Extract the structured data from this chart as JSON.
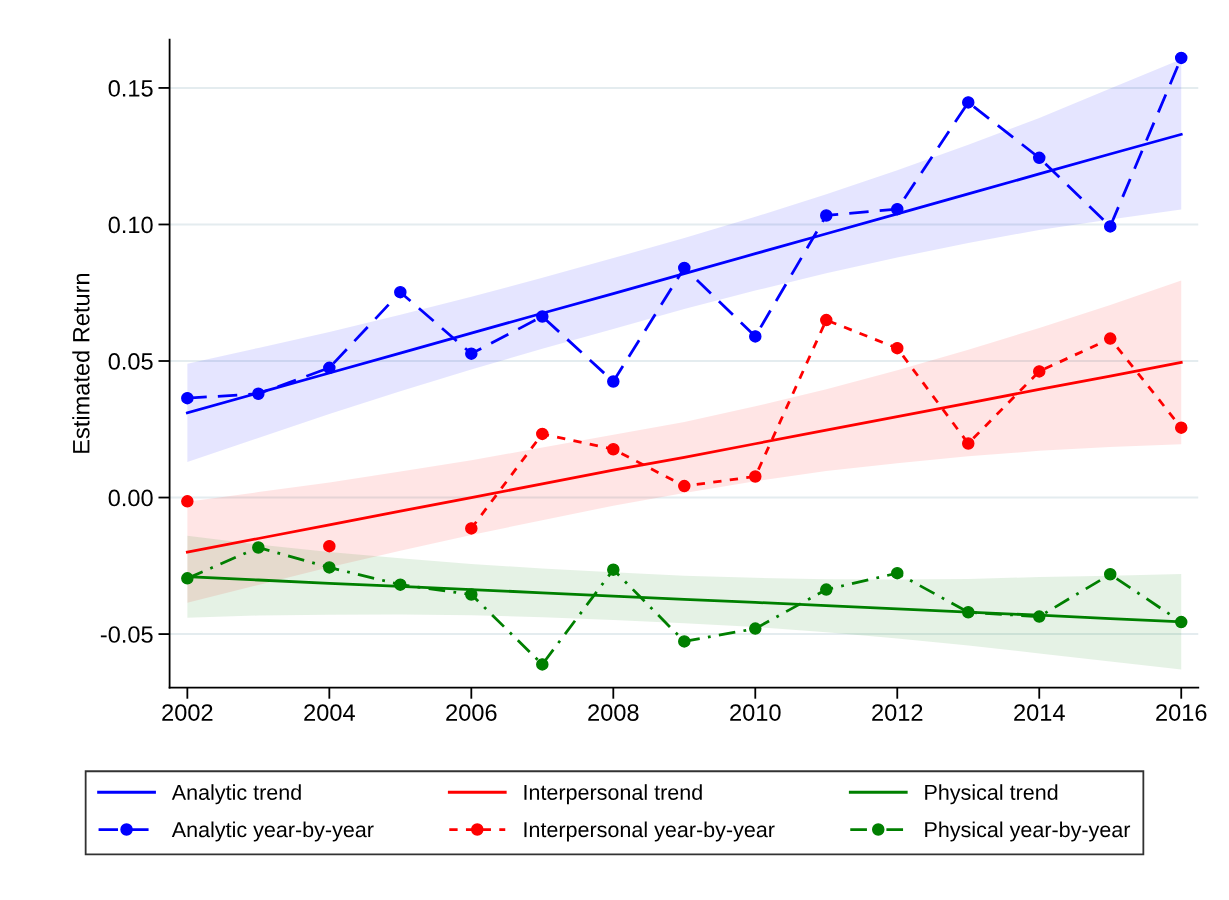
{
  "chart_data": {
    "type": "line",
    "ylabel": "Estimated Return",
    "x": [
      2002,
      2003,
      2004,
      2005,
      2006,
      2007,
      2008,
      2009,
      2010,
      2011,
      2012,
      2013,
      2014,
      2015,
      2016
    ],
    "xlim": [
      2001.75,
      2016.24
    ],
    "xticks": [
      2002,
      2004,
      2006,
      2008,
      2010,
      2012,
      2014,
      2016
    ],
    "ylim": [
      -0.0696,
      0.1677
    ],
    "yticks": [
      -0.05,
      {
        "value": 0.0,
        "label": "0.00"
      },
      0.05,
      {
        "value": 0.1,
        "label": "0.10"
      },
      0.15
    ],
    "grid": "y",
    "legend": "bottom",
    "series": [
      {
        "name": "Analytic trend",
        "color": "#0000ff",
        "line_style": "solid",
        "marker": "none",
        "values": [
          0.031,
          0.0383,
          0.0456,
          0.0529,
          0.0602,
          0.0675,
          0.0747,
          0.082,
          0.0893,
          0.0966,
          0.1039,
          0.1112,
          0.1185,
          0.1258,
          0.133
        ],
        "lower": [
          0.013,
          0.0218,
          0.0306,
          0.0389,
          0.0469,
          0.0545,
          0.0617,
          0.069,
          0.0758,
          0.0821,
          0.0879,
          0.0932,
          0.098,
          0.1018,
          0.1055
        ],
        "upper": [
          0.049,
          0.0548,
          0.0606,
          0.0669,
          0.0735,
          0.0805,
          0.0877,
          0.095,
          0.1028,
          0.1111,
          0.1199,
          0.1292,
          0.139,
          0.1498,
          0.1605
        ]
      },
      {
        "name": "Analytic year-by-year",
        "color": "#0000fe",
        "line_style": "dashed",
        "marker": "circle",
        "values": [
          0.0364,
          0.038,
          0.0475,
          0.0752,
          0.0527,
          0.0663,
          0.0425,
          0.0841,
          0.059,
          0.1033,
          0.1056,
          0.1447,
          0.1244,
          0.0993,
          0.161
        ]
      },
      {
        "name": "Interpersonal trend",
        "color": "#ff0000",
        "line_style": "solid",
        "marker": "none",
        "values": [
          -0.02,
          -0.015,
          -0.01,
          -0.005,
          0.0,
          0.005,
          0.01,
          0.0147,
          0.0197,
          0.0247,
          0.0296,
          0.0346,
          0.0396,
          0.0445,
          0.0495
        ],
        "lower": [
          -0.0385,
          -0.032,
          -0.0255,
          -0.0195,
          -0.0137,
          -0.0083,
          -0.003,
          0.0017,
          0.006,
          0.0097,
          0.0126,
          0.0151,
          0.0171,
          0.0185,
          0.0195
        ],
        "upper": [
          -0.0015,
          0.002,
          0.0055,
          0.0095,
          0.0137,
          0.0183,
          0.023,
          0.0277,
          0.0334,
          0.0397,
          0.0466,
          0.0541,
          0.0621,
          0.0705,
          0.0795
        ]
      },
      {
        "name": "Interpersonal year-by-year",
        "color": "#fe0000",
        "line_style": "dotted",
        "marker": "circle",
        "values": [
          -0.0014,
          null,
          -0.0178,
          null,
          -0.0113,
          0.0233,
          0.0177,
          0.0042,
          0.0077,
          0.065,
          0.0547,
          0.0198,
          0.0462,
          0.0582,
          0.0256
        ]
      },
      {
        "name": "Physical trend",
        "color": "#008000",
        "line_style": "solid",
        "marker": "none",
        "values": [
          -0.029,
          -0.0302,
          -0.0314,
          -0.0325,
          -0.0337,
          -0.0349,
          -0.0361,
          -0.0373,
          -0.0384,
          -0.0396,
          -0.0408,
          -0.042,
          -0.0431,
          -0.0443,
          -0.0455
        ],
        "lower": [
          -0.044,
          -0.0432,
          -0.0429,
          -0.0428,
          -0.0431,
          -0.0438,
          -0.0448,
          -0.046,
          -0.0474,
          -0.0493,
          -0.0516,
          -0.0542,
          -0.0571,
          -0.06,
          -0.063
        ],
        "upper": [
          -0.014,
          -0.0172,
          -0.0199,
          -0.0222,
          -0.0243,
          -0.026,
          -0.0274,
          -0.0286,
          -0.0294,
          -0.0299,
          -0.03,
          -0.0298,
          -0.0291,
          -0.0286,
          -0.028
        ]
      },
      {
        "name": "Physical year-by-year",
        "color": "#007f00",
        "line_style": "dashdot",
        "marker": "circle",
        "values": [
          -0.0296,
          -0.0183,
          -0.0256,
          -0.0319,
          -0.0355,
          -0.0611,
          -0.0264,
          -0.0527,
          -0.048,
          -0.0337,
          -0.0277,
          -0.042,
          -0.0436,
          -0.0281,
          -0.0456
        ]
      }
    ]
  }
}
